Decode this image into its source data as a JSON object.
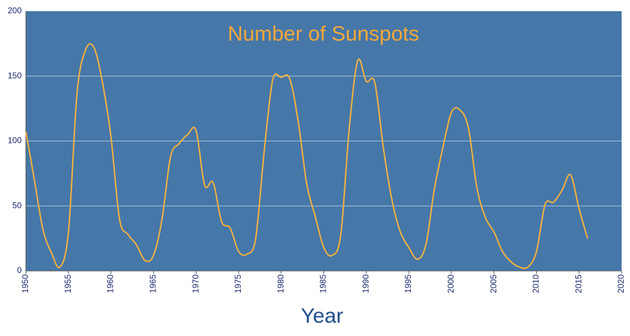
{
  "chart_data": {
    "type": "line",
    "title": "Number of Sunspots",
    "x_label": "Year",
    "x": [
      1950,
      1951,
      1952,
      1953,
      1954,
      1955,
      1956,
      1957,
      1958,
      1959,
      1960,
      1961,
      1962,
      1963,
      1964,
      1965,
      1966,
      1967,
      1968,
      1969,
      1970,
      1971,
      1972,
      1973,
      1974,
      1975,
      1976,
      1977,
      1978,
      1979,
      1980,
      1981,
      1982,
      1983,
      1984,
      1985,
      1986,
      1987,
      1988,
      1989,
      1990,
      1991,
      1992,
      1993,
      1994,
      1995,
      1996,
      1997,
      1998,
      1999,
      2000,
      2001,
      2002,
      2003,
      2004,
      2005,
      2006,
      2007,
      2008,
      2009,
      2010,
      2011,
      2012,
      2013,
      2014,
      2015,
      2016
    ],
    "series": [
      {
        "name": "Sunspots",
        "color": "#f5b13d",
        "values": [
          107,
          70,
          32,
          14,
          3,
          30,
          136,
          170,
          172,
          145,
          103,
          40,
          28,
          20,
          8,
          12,
          40,
          88,
          98,
          105,
          108,
          66,
          68,
          38,
          33,
          15,
          13,
          25,
          92,
          147,
          149,
          148,
          115,
          67,
          42,
          18,
          12,
          28,
          110,
          162,
          146,
          145,
          95,
          55,
          30,
          18,
          9,
          20,
          63,
          95,
          122,
          124,
          110,
          64,
          41,
          30,
          15,
          7,
          3,
          3,
          15,
          51,
          53,
          62,
          74,
          48,
          25
        ]
      }
    ],
    "xlim": [
      1950,
      2020
    ],
    "xticks": [
      1950,
      1955,
      1960,
      1965,
      1970,
      1975,
      1980,
      1985,
      1990,
      1995,
      2000,
      2005,
      2010,
      2015,
      2020
    ],
    "ylim": [
      0,
      200
    ],
    "yticks": [
      0,
      50,
      100,
      150,
      200
    ],
    "grid": true,
    "background": "#4577a8",
    "title_color": "#f5a83a",
    "label_color": "#1f4e8c"
  }
}
